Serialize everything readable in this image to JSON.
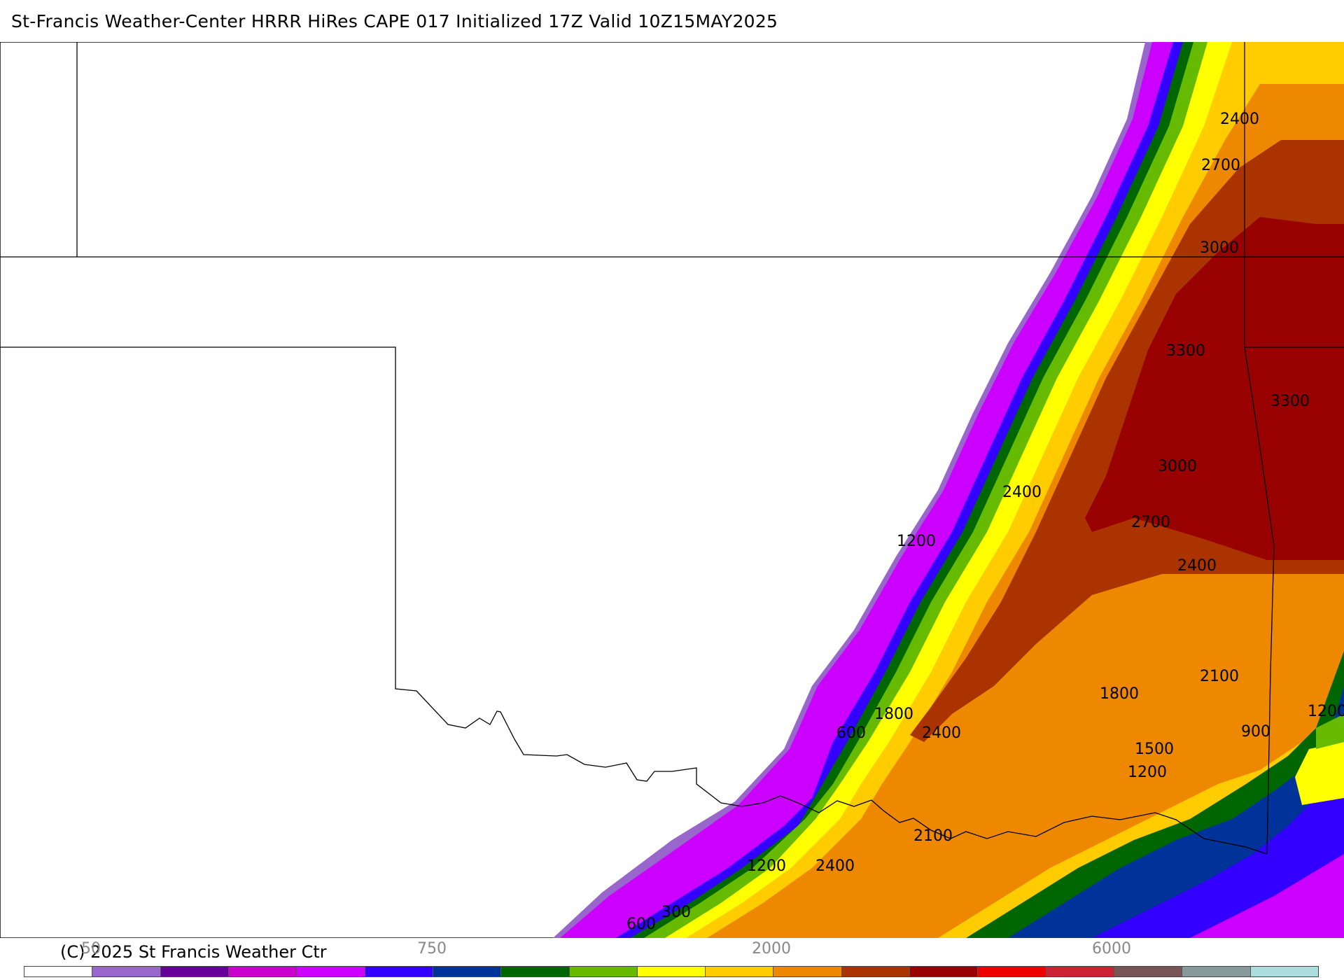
{
  "header": {
    "title": "St-Francis Weather-Center HRRR HiRes CAPE  017 Initialized  17Z Valid 10Z15MAY2025"
  },
  "footer": {
    "copyright": "(C) 2025 St Francis Weather Ctr"
  },
  "colorbar": {
    "labels": [
      "50",
      "750",
      "2000",
      "6000"
    ],
    "colors": [
      "#ffffff",
      "#9966cc",
      "#660099",
      "#cc00cc",
      "#cc00ff",
      "#3300ff",
      "#003399",
      "#006600",
      "#66bb00",
      "#ffff00",
      "#ffcc00",
      "#ee8800",
      "#aa3300",
      "#990000",
      "#ee0000",
      "#cc2233",
      "#775555",
      "#889999",
      "#aadddd"
    ]
  },
  "map": {
    "contour_labels": [
      "2400",
      "2700",
      "3000",
      "3300",
      "3300",
      "3000",
      "2400",
      "2700",
      "2400",
      "1200",
      "2100",
      "1800",
      "1800",
      "1200",
      "600",
      "2400",
      "1500",
      "900",
      "1200",
      "2100",
      "1200",
      "2400",
      "300",
      "600"
    ]
  }
}
